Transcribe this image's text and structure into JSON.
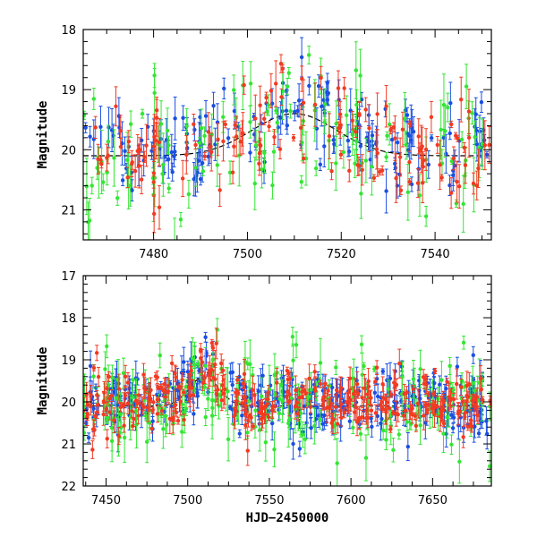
{
  "chart_data": [
    {
      "type": "scatter",
      "panel": "top",
      "title": "",
      "xlabel": "",
      "ylabel": "Magnitude",
      "xlim": [
        7465,
        7552
      ],
      "ylim": [
        21.5,
        18
      ],
      "y_inverted": true,
      "xticks": [
        7480,
        7500,
        7520,
        7540
      ],
      "xtick_labels": [
        "7480",
        "7500",
        "7520",
        "7540"
      ],
      "yticks": [
        18,
        19,
        20,
        21
      ],
      "ytick_labels": [
        "18",
        "19",
        "20",
        "21"
      ],
      "series": [
        {
          "name": "blue",
          "color": "#1a4fe0",
          "base_mag": 20.0,
          "scatter": 0.35,
          "n": 160
        },
        {
          "name": "green",
          "color": "#33e633",
          "base_mag": 20.1,
          "scatter": 0.55,
          "n": 120
        },
        {
          "name": "red",
          "color": "#f23a22",
          "base_mag": 20.0,
          "scatter": 0.4,
          "n": 140
        }
      ],
      "model_curve": {
        "name": "model",
        "color": "#000000",
        "baseline": 20.1,
        "peak_mag": 19.4,
        "peak_x": 7510,
        "width": 9
      }
    },
    {
      "type": "scatter",
      "panel": "bottom",
      "title": "",
      "xlabel": "HJD−2450000",
      "ylabel": "Magnitude",
      "xlim": [
        7436,
        7686
      ],
      "ylim": [
        22,
        17
      ],
      "y_inverted": true,
      "xticks": [
        7450,
        7500,
        7550,
        7600,
        7650
      ],
      "xtick_labels": [
        "7450",
        "7500",
        "7550",
        "7600",
        "7650"
      ],
      "yticks": [
        17,
        18,
        19,
        20,
        21,
        22
      ],
      "ytick_labels": [
        "17",
        "18",
        "19",
        "20",
        "21",
        "22"
      ],
      "series": [
        {
          "name": "blue",
          "color": "#1a4fe0",
          "base_mag": 20.0,
          "scatter": 0.4,
          "n": 320
        },
        {
          "name": "green",
          "color": "#33e633",
          "base_mag": 20.1,
          "scatter": 0.6,
          "n": 200
        },
        {
          "name": "red",
          "color": "#f23a22",
          "base_mag": 20.0,
          "scatter": 0.35,
          "n": 320
        }
      ],
      "model_curve": {
        "name": "model",
        "color": "#000000",
        "baseline": 20.1,
        "peak_mag": 19.4,
        "peak_x": 7510,
        "width": 9
      }
    }
  ]
}
